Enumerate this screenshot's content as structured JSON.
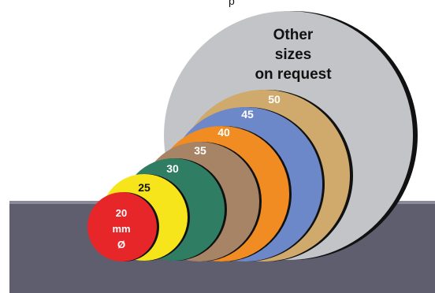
{
  "diagram": {
    "top_caption": "p",
    "note_lines": [
      "Other",
      "sizes",
      "on request"
    ],
    "colors": {
      "background": "#ffffff",
      "surface": "#5e5e6e",
      "surface_highlight": "#8a8a9a",
      "outline": "#111111",
      "label_text": "#ffffff",
      "note_text": "#111111"
    },
    "discs": [
      {
        "size_label": "Other",
        "color": "#c2c4c8",
        "label": ""
      },
      {
        "size_label": "50",
        "color": "#d0aa6c",
        "label": "50"
      },
      {
        "size_label": "45",
        "color": "#6d88c8",
        "label": "45"
      },
      {
        "size_label": "40",
        "color": "#f08c22",
        "label": "40"
      },
      {
        "size_label": "35",
        "color": "#a88466",
        "label": "35"
      },
      {
        "size_label": "30",
        "color": "#2f7d62",
        "label": "30"
      },
      {
        "size_label": "25",
        "color": "#f6e51b",
        "label": "25"
      },
      {
        "size_label": "20",
        "color": "#e7262a",
        "label_lines": [
          "20",
          "mm",
          "Ø"
        ]
      }
    ]
  }
}
